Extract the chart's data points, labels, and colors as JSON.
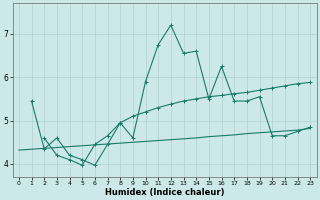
{
  "xlabel": "Humidex (Indice chaleur)",
  "bg_color": "#cce8e8",
  "grid_color": "#b0d0d0",
  "line_color": "#1a7a6a",
  "xlim": [
    -0.5,
    23.5
  ],
  "ylim": [
    3.7,
    7.7
  ],
  "yticks": [
    4,
    5,
    6,
    7
  ],
  "xticks": [
    0,
    1,
    2,
    3,
    4,
    5,
    6,
    7,
    8,
    9,
    10,
    11,
    12,
    13,
    14,
    15,
    16,
    17,
    18,
    19,
    20,
    21,
    22,
    23
  ],
  "line1_x": [
    1,
    2,
    3,
    4,
    5,
    6,
    7,
    8,
    9,
    10,
    11,
    12,
    13,
    14,
    15,
    16,
    17,
    18,
    19,
    20,
    21,
    22,
    23
  ],
  "line1_y": [
    5.45,
    4.35,
    4.6,
    4.2,
    4.1,
    3.97,
    4.45,
    4.95,
    4.6,
    5.9,
    6.75,
    7.2,
    6.55,
    6.6,
    5.5,
    6.25,
    5.45,
    5.45,
    5.55,
    4.65,
    4.65,
    4.75,
    4.85
  ],
  "line2_x": [
    2,
    3,
    4,
    5,
    6,
    7,
    8,
    9,
    10,
    11,
    12,
    13,
    14,
    15,
    16,
    17,
    18,
    19,
    20,
    21,
    22,
    23
  ],
  "line2_y": [
    4.6,
    4.2,
    4.1,
    3.97,
    4.45,
    4.65,
    4.95,
    5.1,
    5.2,
    5.3,
    5.38,
    5.45,
    5.5,
    5.55,
    5.58,
    5.62,
    5.65,
    5.7,
    5.75,
    5.8,
    5.85,
    5.88
  ],
  "line3_x": [
    0,
    1,
    2,
    3,
    4,
    5,
    6,
    7,
    8,
    9,
    10,
    11,
    12,
    13,
    14,
    15,
    16,
    17,
    18,
    19,
    20,
    21,
    22,
    23
  ],
  "line3_y": [
    4.32,
    4.34,
    4.36,
    4.38,
    4.4,
    4.42,
    4.44,
    4.46,
    4.48,
    4.5,
    4.52,
    4.54,
    4.56,
    4.58,
    4.6,
    4.63,
    4.65,
    4.67,
    4.7,
    4.72,
    4.74,
    4.76,
    4.78,
    4.82
  ]
}
